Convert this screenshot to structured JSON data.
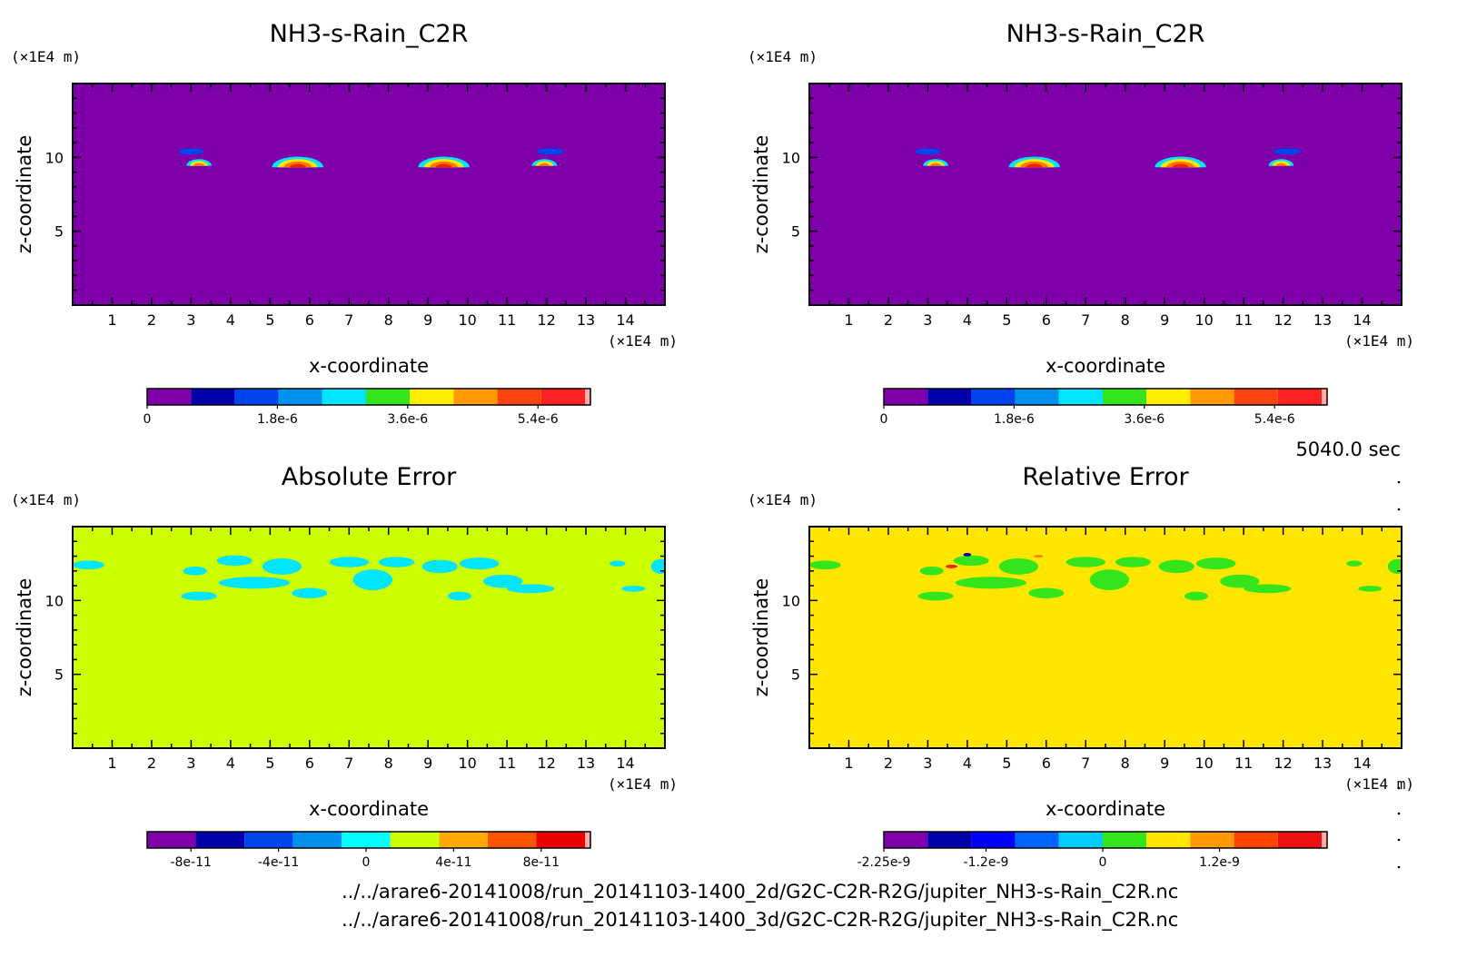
{
  "colors": {
    "bg": "#ffffff",
    "frame": "#000000",
    "base_purple": "#7f00aa",
    "abs_base": "#ccff00",
    "rel_base": "#ffe600",
    "cyan": "#00e5ff",
    "green": "#33e51a"
  },
  "footer": {
    "time": "5040.0 sec",
    "file_2d": "../../arare6-20141008/run_20141103-1400_2d/G2C-C2R-R2G/jupiter_NH3-s-Rain_C2R.nc",
    "file_3d": "../../arare6-20141008/run_20141103-1400_3d/G2C-C2R-R2G/jupiter_NH3-s-Rain_C2R.nc"
  },
  "chart_data": [
    {
      "type": "heatmap",
      "title": "NH3-s-Rain_C2R",
      "xlabel": "x-coordinate",
      "ylabel": "z-coordinate",
      "x_unit": "(×1E4 m)",
      "y_unit": "(×1E4 m)",
      "xlim": [
        0,
        15
      ],
      "ylim": [
        0,
        15
      ],
      "x_ticks": [
        "1",
        "2",
        "3",
        "4",
        "5",
        "6",
        "7",
        "8",
        "9",
        "10",
        "11",
        "12",
        "13",
        "14"
      ],
      "y_ticks": [
        "5",
        "10"
      ],
      "base_color": "#7f00aa",
      "features": [
        {
          "x": 3.0,
          "z": 10.4,
          "rx": 0.32,
          "rz": 0.22,
          "color": "#0044ee"
        },
        {
          "x": 3.2,
          "z": 9.6,
          "rx": 0.32,
          "rz": 0.28,
          "levels": [
            "#00e5ff",
            "#ffe600",
            "#ff7700"
          ]
        },
        {
          "x": 5.7,
          "z": 9.6,
          "rx": 0.65,
          "rz": 0.45,
          "levels": [
            "#00e5ff",
            "#ffe600",
            "#ff7700",
            "#ee2200"
          ]
        },
        {
          "x": 9.4,
          "z": 9.6,
          "rx": 0.65,
          "rz": 0.45,
          "levels": [
            "#00e5ff",
            "#ffe600",
            "#ff7700",
            "#ee2200"
          ]
        },
        {
          "x": 11.95,
          "z": 9.6,
          "rx": 0.32,
          "rz": 0.28,
          "levels": [
            "#00e5ff",
            "#ffe600",
            "#ff7700"
          ]
        },
        {
          "x": 12.1,
          "z": 10.4,
          "rx": 0.35,
          "rz": 0.22,
          "color": "#0044ee"
        }
      ],
      "colorbar": {
        "colors": [
          "#7f00aa",
          "#0000aa",
          "#0044ee",
          "#0090ee",
          "#00e5ff",
          "#33e51a",
          "#ffee00",
          "#ff9900",
          "#ff4411",
          "#ff2222",
          "#ffaaaa"
        ],
        "tick_values": [
          0,
          1.8e-06,
          3.6e-06,
          5.4e-06
        ],
        "tick_labels": [
          "0",
          "1.8e-6",
          "3.6e-6",
          "5.4e-6"
        ],
        "vmin": 0,
        "vmax": 6.05e-06
      }
    },
    {
      "type": "heatmap",
      "title": "NH3-s-Rain_C2R",
      "xlabel": "x-coordinate",
      "ylabel": "z-coordinate",
      "x_unit": "(×1E4 m)",
      "y_unit": "(×1E4 m)",
      "xlim": [
        0,
        15
      ],
      "ylim": [
        0,
        15
      ],
      "x_ticks": [
        "1",
        "2",
        "3",
        "4",
        "5",
        "6",
        "7",
        "8",
        "9",
        "10",
        "11",
        "12",
        "13",
        "14"
      ],
      "y_ticks": [
        "5",
        "10"
      ],
      "base_color": "#7f00aa",
      "features": [
        {
          "x": 3.0,
          "z": 10.4,
          "rx": 0.32,
          "rz": 0.22,
          "color": "#0044ee"
        },
        {
          "x": 3.2,
          "z": 9.6,
          "rx": 0.32,
          "rz": 0.28,
          "levels": [
            "#00e5ff",
            "#ffe600",
            "#ff7700"
          ]
        },
        {
          "x": 5.7,
          "z": 9.6,
          "rx": 0.65,
          "rz": 0.45,
          "levels": [
            "#00e5ff",
            "#ffe600",
            "#ff7700",
            "#ee2200"
          ]
        },
        {
          "x": 9.4,
          "z": 9.6,
          "rx": 0.65,
          "rz": 0.45,
          "levels": [
            "#00e5ff",
            "#ffe600",
            "#ff7700",
            "#ee2200"
          ]
        },
        {
          "x": 11.95,
          "z": 9.6,
          "rx": 0.32,
          "rz": 0.28,
          "levels": [
            "#00e5ff",
            "#ffe600",
            "#ff7700"
          ]
        },
        {
          "x": 12.1,
          "z": 10.4,
          "rx": 0.35,
          "rz": 0.22,
          "color": "#0044ee"
        }
      ],
      "colorbar": {
        "colors": [
          "#7f00aa",
          "#0000aa",
          "#0044ee",
          "#0090ee",
          "#00e5ff",
          "#33e51a",
          "#ffee00",
          "#ff9900",
          "#ff4411",
          "#ff2222",
          "#ffaaaa"
        ],
        "tick_values": [
          0,
          1.8e-06,
          3.6e-06,
          5.4e-06
        ],
        "tick_labels": [
          "0",
          "1.8e-6",
          "3.6e-6",
          "5.4e-6"
        ],
        "vmin": 0,
        "vmax": 6.05e-06
      }
    },
    {
      "type": "heatmap",
      "title": "Absolute Error",
      "xlabel": "x-coordinate",
      "ylabel": "z-coordinate",
      "x_unit": "(×1E4 m)",
      "y_unit": "(×1E4 m)",
      "xlim": [
        0,
        15
      ],
      "ylim": [
        0,
        15
      ],
      "x_ticks": [
        "1",
        "2",
        "3",
        "4",
        "5",
        "6",
        "7",
        "8",
        "9",
        "10",
        "11",
        "12",
        "13",
        "14"
      ],
      "y_ticks": [
        "5",
        "10"
      ],
      "base_color": "#ccff00",
      "patch_color": "#00e5ff",
      "patches": [
        {
          "x": 0.4,
          "z": 12.4,
          "rx": 0.4,
          "rz": 0.3
        },
        {
          "x": 3.1,
          "z": 12.0,
          "rx": 0.3,
          "rz": 0.3
        },
        {
          "x": 4.1,
          "z": 12.7,
          "rx": 0.45,
          "rz": 0.35
        },
        {
          "x": 5.3,
          "z": 12.3,
          "rx": 0.5,
          "rz": 0.55
        },
        {
          "x": 4.6,
          "z": 11.2,
          "rx": 0.9,
          "rz": 0.4
        },
        {
          "x": 3.2,
          "z": 10.3,
          "rx": 0.45,
          "rz": 0.3
        },
        {
          "x": 6.0,
          "z": 10.5,
          "rx": 0.45,
          "rz": 0.35
        },
        {
          "x": 7.0,
          "z": 12.6,
          "rx": 0.5,
          "rz": 0.35
        },
        {
          "x": 7.6,
          "z": 11.4,
          "rx": 0.5,
          "rz": 0.7
        },
        {
          "x": 8.2,
          "z": 12.6,
          "rx": 0.45,
          "rz": 0.35
        },
        {
          "x": 9.3,
          "z": 12.3,
          "rx": 0.45,
          "rz": 0.45
        },
        {
          "x": 10.3,
          "z": 12.5,
          "rx": 0.5,
          "rz": 0.4
        },
        {
          "x": 10.9,
          "z": 11.3,
          "rx": 0.5,
          "rz": 0.45
        },
        {
          "x": 11.6,
          "z": 10.8,
          "rx": 0.6,
          "rz": 0.3
        },
        {
          "x": 9.8,
          "z": 10.3,
          "rx": 0.3,
          "rz": 0.3
        },
        {
          "x": 13.8,
          "z": 12.5,
          "rx": 0.2,
          "rz": 0.2
        },
        {
          "x": 14.2,
          "z": 10.8,
          "rx": 0.3,
          "rz": 0.2
        },
        {
          "x": 14.9,
          "z": 12.3,
          "rx": 0.25,
          "rz": 0.5
        }
      ],
      "colorbar": {
        "colors": [
          "#7f00aa",
          "#0000aa",
          "#0044ee",
          "#0090ee",
          "#00ffff",
          "#ccff00",
          "#ffaa00",
          "#ff5500",
          "#ee0000",
          "#ffaaaa"
        ],
        "tick_values": [
          -8e-11,
          -4e-11,
          0,
          4e-11,
          8e-11
        ],
        "tick_labels": [
          "-8e-11",
          "-4e-11",
          "0",
          "4e-11",
          "8e-11"
        ],
        "vmin": -1e-10,
        "vmax": 1e-10
      }
    },
    {
      "type": "heatmap",
      "title": "Relative Error",
      "xlabel": "x-coordinate",
      "ylabel": "z-coordinate",
      "x_unit": "(×1E4 m)",
      "y_unit": "(×1E4 m)",
      "xlim": [
        0,
        15
      ],
      "ylim": [
        0,
        15
      ],
      "x_ticks": [
        "1",
        "2",
        "3",
        "4",
        "5",
        "6",
        "7",
        "8",
        "9",
        "10",
        "11",
        "12",
        "13",
        "14"
      ],
      "y_ticks": [
        "5",
        "10"
      ],
      "base_color": "#ffe600",
      "patch_color": "#33e51a",
      "patches": [
        {
          "x": 0.4,
          "z": 12.4,
          "rx": 0.4,
          "rz": 0.3
        },
        {
          "x": 3.1,
          "z": 12.0,
          "rx": 0.3,
          "rz": 0.3
        },
        {
          "x": 4.1,
          "z": 12.7,
          "rx": 0.45,
          "rz": 0.35
        },
        {
          "x": 5.3,
          "z": 12.3,
          "rx": 0.5,
          "rz": 0.55
        },
        {
          "x": 4.6,
          "z": 11.2,
          "rx": 0.9,
          "rz": 0.4
        },
        {
          "x": 3.2,
          "z": 10.3,
          "rx": 0.45,
          "rz": 0.3
        },
        {
          "x": 6.0,
          "z": 10.5,
          "rx": 0.45,
          "rz": 0.35
        },
        {
          "x": 7.0,
          "z": 12.6,
          "rx": 0.5,
          "rz": 0.35
        },
        {
          "x": 7.6,
          "z": 11.4,
          "rx": 0.5,
          "rz": 0.7
        },
        {
          "x": 8.2,
          "z": 12.6,
          "rx": 0.45,
          "rz": 0.35
        },
        {
          "x": 9.3,
          "z": 12.3,
          "rx": 0.45,
          "rz": 0.45
        },
        {
          "x": 10.3,
          "z": 12.5,
          "rx": 0.5,
          "rz": 0.4
        },
        {
          "x": 10.9,
          "z": 11.3,
          "rx": 0.5,
          "rz": 0.45
        },
        {
          "x": 11.6,
          "z": 10.8,
          "rx": 0.6,
          "rz": 0.3
        },
        {
          "x": 9.8,
          "z": 10.3,
          "rx": 0.3,
          "rz": 0.3
        },
        {
          "x": 13.8,
          "z": 12.5,
          "rx": 0.2,
          "rz": 0.2
        },
        {
          "x": 14.2,
          "z": 10.8,
          "rx": 0.3,
          "rz": 0.2
        },
        {
          "x": 14.9,
          "z": 12.3,
          "rx": 0.25,
          "rz": 0.5
        }
      ],
      "spots": [
        {
          "x": 4.0,
          "z": 13.1,
          "rx": 0.1,
          "rz": 0.12,
          "color": "#0000aa"
        },
        {
          "x": 3.6,
          "z": 12.3,
          "rx": 0.15,
          "rz": 0.12,
          "color": "#ee2200"
        },
        {
          "x": 5.8,
          "z": 13.0,
          "rx": 0.12,
          "rz": 0.08,
          "color": "#ff7700"
        }
      ],
      "colorbar": {
        "colors": [
          "#7f00aa",
          "#0000aa",
          "#0000ff",
          "#0066ff",
          "#00ccff",
          "#33e51a",
          "#ffe600",
          "#ff9900",
          "#ff4400",
          "#ee1111",
          "#ffaaaa"
        ],
        "tick_values": [
          -2.25e-09,
          -1.2e-09,
          0,
          1.2e-09
        ],
        "tick_labels": [
          "-2.25e-9",
          "-1.2e-9",
          "0",
          "1.2e-9"
        ],
        "vmin": -2.25e-09,
        "vmax": 2.25e-09
      }
    }
  ]
}
